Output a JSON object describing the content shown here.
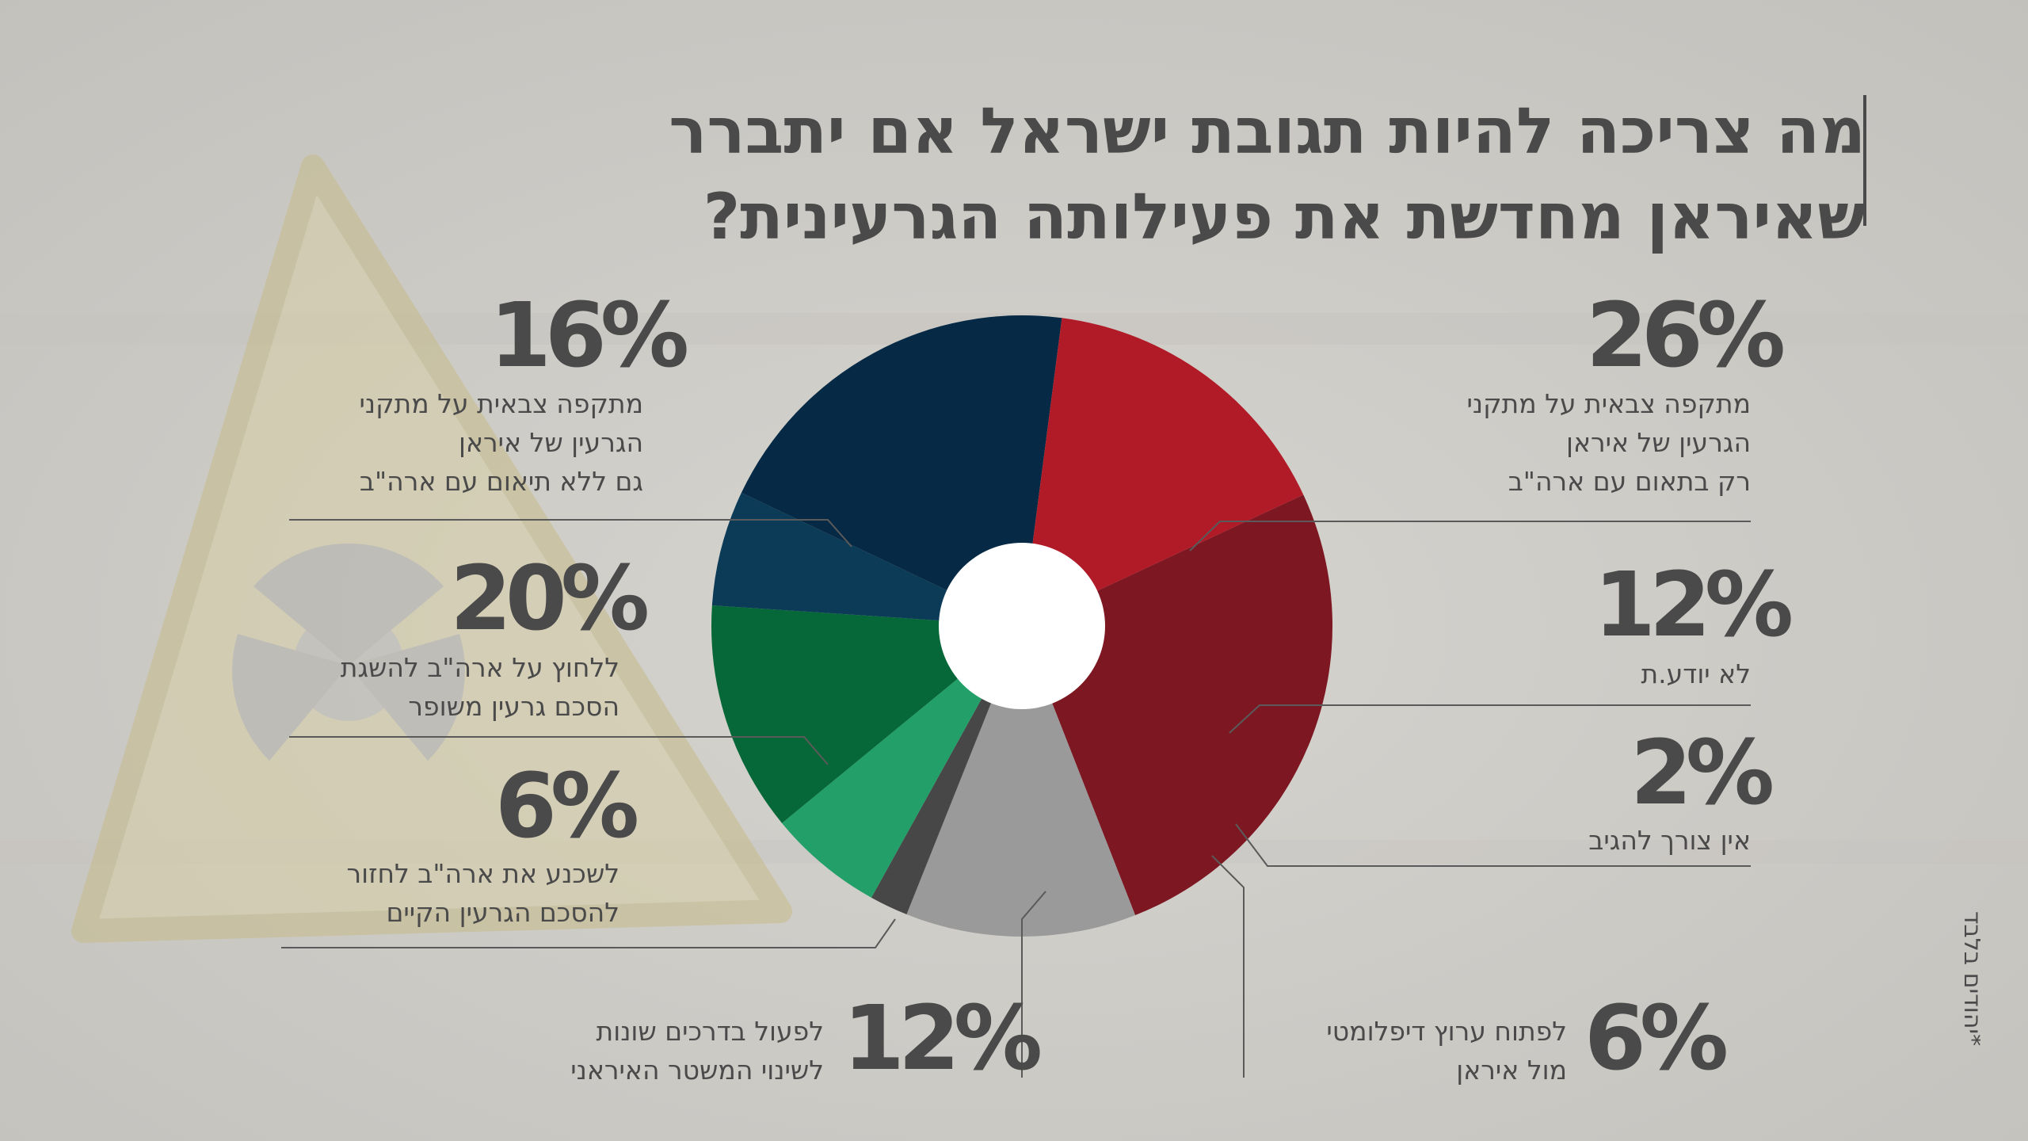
{
  "title": {
    "line1": "מה צריכה להיות תגובת ישראל אם יתברר",
    "line2": "שאיראן מחדשת את פעילותה הגרעינית?"
  },
  "footnote": "*יהודים בלבד",
  "colors": {
    "background": "#cfcdc8",
    "text": "#4a4a4a",
    "leader_line": "#5a5a5a"
  },
  "chart_data": {
    "type": "pie",
    "donut": true,
    "start_angle_deg": 65,
    "direction": "clockwise",
    "slices": [
      {
        "value": 26,
        "pct_label": "26%",
        "label_lines": [
          "מתקפה צבאית על מתקני",
          "הגרעין של איראן",
          "רק בתאום עם ארה\"ב"
        ],
        "color": "#7d1823"
      },
      {
        "value": 12,
        "pct_label": "12%",
        "label_lines": [
          "לא יודע.ת"
        ],
        "color": "#9a9a9a"
      },
      {
        "value": 2,
        "pct_label": "2%",
        "label_lines": [
          "אין צורך להגיב"
        ],
        "color": "#474747"
      },
      {
        "value": 6,
        "pct_label": "6%",
        "label_lines": [
          "לפתוח ערוץ דיפלומטי",
          "מול איראן"
        ],
        "color": "#23a06a"
      },
      {
        "value": 12,
        "pct_label": "12%",
        "label_lines": [
          "לפעול בדרכים שונות",
          "לשינוי המשטר האיראני"
        ],
        "color": "#066838"
      },
      {
        "value": 6,
        "pct_label": "6%",
        "label_lines": [
          "לשכנע את ארה\"ב לחזור",
          "להסכם הגרעין הקיים"
        ],
        "color": "#0b3b57"
      },
      {
        "value": 20,
        "pct_label": "20%",
        "label_lines": [
          "ללחוץ על ארה\"ב להשגת",
          "הסכם גרעין משופר"
        ],
        "color": "#062a45"
      },
      {
        "value": 16,
        "pct_label": "16%",
        "label_lines": [
          "מתקפה צבאית על מתקני",
          "הגרעין של איראן",
          "גם ללא תיאום עם ארה\"ב"
        ],
        "color": "#b11a27"
      }
    ]
  }
}
